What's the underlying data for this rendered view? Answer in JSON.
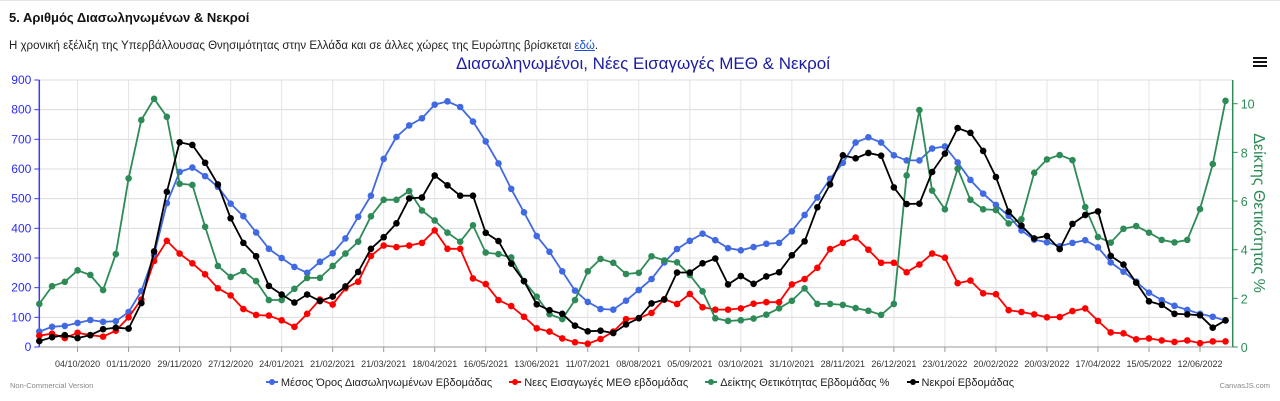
{
  "page": {
    "heading": "5. Αριθμός Διασωληνωμένων & Νεκροί",
    "paragraph": "Η χρονική εξέλιξη της Υπερβάλλουσας Θνησιμότητας στην Ελλάδα και σε άλλες χώρες της Ευρώπης βρίσκεται ",
    "link_text": "εδώ",
    "paragraph_end": ".",
    "menu_icon": "hamburger-menu-icon",
    "credit_left": "Non-Commercial Version",
    "credit_right": "CanvasJS.com"
  },
  "chart_data": {
    "type": "line",
    "title": "Διασωληνωμένοι, Νέες Εισαγωγές ΜΕΘ & Νεκροί",
    "y_axis": {
      "range": [
        0,
        900
      ],
      "ticks": [
        0,
        100,
        200,
        300,
        400,
        500,
        600,
        700,
        800,
        900
      ],
      "label": ""
    },
    "y2_axis": {
      "range": [
        0,
        11
      ],
      "ticks": [
        0,
        2,
        4,
        6,
        8,
        10
      ],
      "label": "Δείκτης Θετικότητας %"
    },
    "x_tick_labels": [
      "04/10/2020",
      "01/11/2020",
      "29/11/2020",
      "27/12/2020",
      "24/01/2021",
      "21/02/2021",
      "21/03/2021",
      "18/04/2021",
      "16/05/2021",
      "13/06/2021",
      "11/07/2021",
      "08/08/2021",
      "05/09/2021",
      "03/10/2021",
      "31/10/2021",
      "28/11/2021",
      "26/12/2021",
      "23/01/2022",
      "20/02/2022",
      "20/03/2022",
      "17/04/2022",
      "15/05/2022",
      "12/06/2022"
    ],
    "x_first_date": "13/09/2020",
    "x_interval": "weekly",
    "x_first_tick_index": 3,
    "x_tick_every": 4,
    "grid": true,
    "legend_position": "bottom",
    "series": [
      {
        "name": "Μέσος Όρος Διασωληνωμένων Εβδομάδας",
        "color": "#4169e1",
        "axis": "y",
        "values": [
          52,
          68,
          71,
          81,
          91,
          85,
          87,
          118,
          188,
          310,
          485,
          590,
          605,
          576,
          540,
          483,
          441,
          386,
          331,
          300,
          270,
          250,
          287,
          316,
          366,
          439,
          510,
          634,
          708,
          747,
          771,
          817,
          828,
          809,
          760,
          693,
          619,
          533,
          454,
          374,
          321,
          255,
          190,
          152,
          128,
          126,
          156,
          192,
          229,
          285,
          330,
          358,
          382,
          360,
          333,
          326,
          337,
          348,
          351,
          390,
          445,
          504,
          567,
          621,
          689,
          707,
          689,
          646,
          629,
          629,
          669,
          676,
          622,
          563,
          517,
          479,
          442,
          393,
          362,
          353,
          340,
          351,
          360,
          336,
          285,
          254,
          220,
          183,
          158,
          139,
          125,
          112,
          102,
          89
        ]
      },
      {
        "name": "Νεες Εισαγωγές ΜΕΘ εβδομάδας",
        "color": "#ff0000",
        "axis": "y",
        "values": [
          38,
          45,
          30,
          48,
          40,
          35,
          55,
          100,
          160,
          290,
          358,
          315,
          282,
          245,
          198,
          174,
          128,
          108,
          106,
          90,
          68,
          112,
          160,
          143,
          198,
          220,
          307,
          342,
          337,
          342,
          351,
          393,
          331,
          331,
          231,
          212,
          158,
          138,
          102,
          63,
          52,
          29,
          16,
          11,
          27,
          52,
          94,
          97,
          115,
          161,
          145,
          179,
          134,
          126,
          126,
          130,
          146,
          151,
          151,
          211,
          229,
          267,
          330,
          351,
          369,
          328,
          284,
          284,
          252,
          278,
          315,
          301,
          215,
          224,
          181,
          178,
          124,
          118,
          110,
          100,
          101,
          121,
          130,
          88,
          49,
          46,
          26,
          29,
          22,
          17,
          22,
          13,
          19,
          19
        ]
      },
      {
        "name": "Δείκτης Θετικότητας Εβδομάδας %",
        "color": "#2e8b57",
        "axis": "y2",
        "values": [
          1.77,
          2.5,
          2.68,
          3.15,
          2.96,
          2.34,
          3.82,
          6.93,
          9.33,
          10.2,
          9.46,
          6.71,
          6.66,
          4.94,
          3.33,
          2.88,
          3.12,
          2.71,
          1.93,
          1.93,
          2.39,
          2.84,
          2.84,
          3.33,
          3.84,
          4.33,
          5.37,
          6.05,
          6.05,
          6.41,
          5.61,
          5.2,
          4.7,
          4.33,
          5.0,
          3.88,
          3.82,
          3.68,
          2.71,
          2.07,
          1.35,
          1.15,
          1.93,
          3.11,
          3.62,
          3.46,
          3.0,
          3.05,
          3.73,
          3.56,
          3.48,
          2.96,
          2.29,
          1.18,
          1.07,
          1.1,
          1.17,
          1.33,
          1.59,
          1.9,
          2.41,
          1.77,
          1.77,
          1.73,
          1.6,
          1.49,
          1.32,
          1.77,
          7.05,
          9.74,
          6.43,
          5.66,
          7.33,
          6.05,
          5.66,
          5.63,
          5.08,
          5.25,
          7.16,
          7.71,
          7.89,
          7.68,
          5.75,
          4.52,
          4.29,
          4.86,
          4.97,
          4.7,
          4.4,
          4.3,
          4.4,
          5.67,
          7.52,
          10.12
        ]
      },
      {
        "name": "Νεκροί Εβδομάδας",
        "color": "#000000",
        "axis": "y",
        "values": [
          20,
          33,
          40,
          30,
          40,
          60,
          65,
          62,
          148,
          322,
          523,
          690,
          681,
          621,
          548,
          434,
          351,
          306,
          206,
          177,
          150,
          177,
          155,
          170,
          204,
          253,
          331,
          370,
          417,
          501,
          504,
          578,
          545,
          510,
          510,
          385,
          357,
          281,
          222,
          144,
          124,
          112,
          72,
          53,
          55,
          47,
          76,
          97,
          147,
          160,
          251,
          251,
          282,
          298,
          211,
          239,
          213,
          238,
          252,
          309,
          356,
          471,
          548,
          646,
          636,
          654,
          645,
          538,
          482,
          483,
          590,
          652,
          738,
          722,
          661,
          573,
          456,
          409,
          366,
          374,
          330,
          415,
          445,
          457,
          307,
          278,
          217,
          154,
          142,
          112,
          110,
          107,
          65,
          90
        ]
      }
    ]
  }
}
